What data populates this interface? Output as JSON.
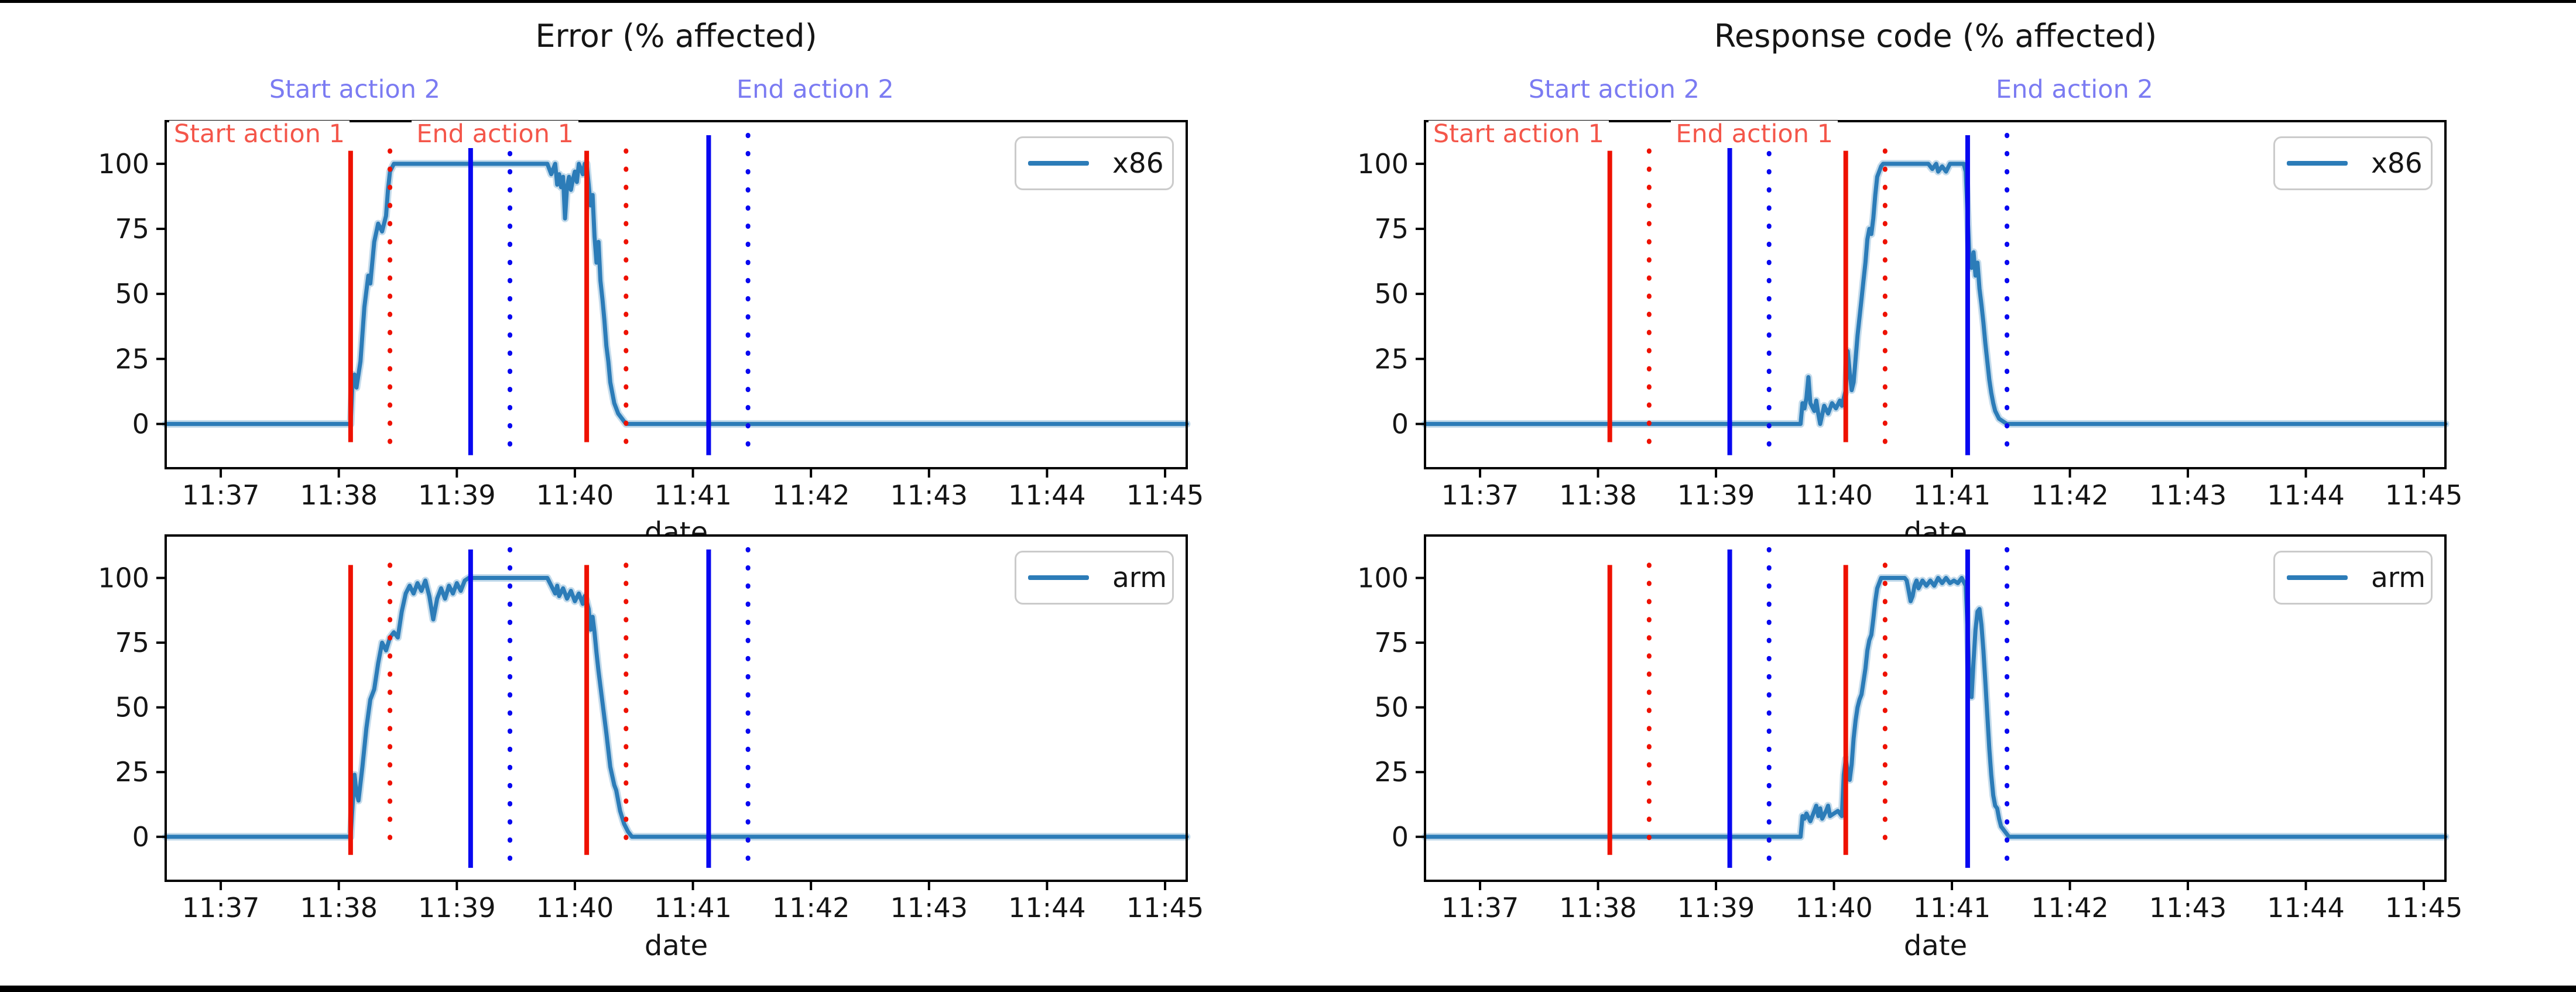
{
  "figure": {
    "background": "#ffffff",
    "border_top_color": "#000000",
    "border_bottom_color": "#000000"
  },
  "colors": {
    "series_line": "#2c7cb8",
    "action_red_line": "#ee1100",
    "action_blue_line": "#0808f0",
    "annotation_red_text": "#f4564a",
    "annotation_blue_text": "#7b7bf2",
    "axis_text": "#151515",
    "legend_border": "#cbcbcb"
  },
  "chart_data": {
    "type": "line",
    "xlabel": "date",
    "time_axis": "seconds_after_11:00",
    "xlim_seconds": [
      2192,
      2711
    ],
    "xtick_seconds": [
      2220,
      2280,
      2340,
      2400,
      2460,
      2520,
      2580,
      2640,
      2700
    ],
    "xtick_labels": [
      "11:37",
      "11:38",
      "11:39",
      "11:40",
      "11:41",
      "11:42",
      "11:43",
      "11:44",
      "11:45"
    ],
    "yticks": [
      0,
      25,
      50,
      75,
      100
    ],
    "ylim": [
      -17,
      116.4
    ],
    "grid": false,
    "legend_position": "upper right",
    "action_lines": [
      {
        "action": "Start action 1",
        "time": "11:38:06",
        "color": "red",
        "style": "solid"
      },
      {
        "action": "Start action 1 (detected)",
        "time": "11:38:26",
        "color": "red",
        "style": "dotted"
      },
      {
        "action": "Start action 2",
        "time": "11:39:07",
        "color": "blue",
        "style": "solid"
      },
      {
        "action": "Start action 2 (detected)",
        "time": "11:39:27",
        "color": "blue",
        "style": "dotted"
      },
      {
        "action": "End action 1",
        "time": "11:40:06",
        "color": "red",
        "style": "solid"
      },
      {
        "action": "End action 1 (detected)",
        "time": "11:40:26",
        "color": "red",
        "style": "dotted"
      },
      {
        "action": "End action 2",
        "time": "11:41:08",
        "color": "blue",
        "style": "solid"
      },
      {
        "action": "End action 2 (detected)",
        "time": "11:41:28",
        "color": "blue",
        "style": "dotted"
      }
    ],
    "line_extent_values": {
      "red": [
        -7,
        105
      ],
      "blue": [
        -12,
        111
      ]
    },
    "annotations": [
      {
        "text": "Start action 1",
        "color": "red"
      },
      {
        "text": "Start action 2",
        "color": "blue"
      },
      {
        "text": "End action 1",
        "color": "red"
      },
      {
        "text": "End action 2",
        "color": "blue"
      }
    ],
    "panels": [
      {
        "id": "top-left",
        "title": "Error (% affected)",
        "legend": "x86",
        "series_name": "x86",
        "metric": "Error (% affected)",
        "show_annotations": true,
        "points": [
          [
            2192,
            0
          ],
          [
            2286,
            0
          ],
          [
            2287,
            16
          ],
          [
            2288,
            19
          ],
          [
            2289,
            14
          ],
          [
            2291,
            24
          ],
          [
            2293,
            45
          ],
          [
            2295,
            57
          ],
          [
            2296,
            54
          ],
          [
            2298,
            70
          ],
          [
            2300,
            77
          ],
          [
            2302,
            74
          ],
          [
            2304,
            80
          ],
          [
            2305,
            90
          ],
          [
            2306,
            97
          ],
          [
            2308,
            100
          ],
          [
            2386,
            100
          ],
          [
            2388,
            96
          ],
          [
            2390,
            100
          ],
          [
            2391,
            92
          ],
          [
            2392,
            96
          ],
          [
            2393,
            91
          ],
          [
            2394,
            95
          ],
          [
            2395,
            79
          ],
          [
            2396,
            91
          ],
          [
            2397,
            95
          ],
          [
            2398,
            90
          ],
          [
            2399,
            94
          ],
          [
            2400,
            97
          ],
          [
            2401,
            93
          ],
          [
            2402,
            100
          ],
          [
            2404,
            96
          ],
          [
            2405,
            100
          ],
          [
            2406,
            100
          ],
          [
            2407,
            92
          ],
          [
            2408,
            84
          ],
          [
            2409,
            88
          ],
          [
            2410,
            72
          ],
          [
            2411,
            62
          ],
          [
            2412,
            70
          ],
          [
            2413,
            55
          ],
          [
            2414,
            48
          ],
          [
            2415,
            40
          ],
          [
            2416,
            30
          ],
          [
            2417,
            24
          ],
          [
            2418,
            16
          ],
          [
            2419,
            12
          ],
          [
            2420,
            8
          ],
          [
            2422,
            4
          ],
          [
            2424,
            2
          ],
          [
            2426,
            0
          ],
          [
            2711,
            0
          ]
        ]
      },
      {
        "id": "top-right",
        "title": "Response code (% affected)",
        "legend": "x86",
        "series_name": "x86",
        "metric": "Response code (% affected)",
        "show_annotations": true,
        "points": [
          [
            2192,
            0
          ],
          [
            2383,
            0
          ],
          [
            2384,
            8
          ],
          [
            2385,
            6
          ],
          [
            2386,
            10
          ],
          [
            2387,
            18
          ],
          [
            2388,
            8
          ],
          [
            2390,
            5
          ],
          [
            2391,
            9
          ],
          [
            2392,
            4
          ],
          [
            2393,
            0
          ],
          [
            2395,
            7
          ],
          [
            2397,
            4
          ],
          [
            2399,
            8
          ],
          [
            2401,
            6
          ],
          [
            2403,
            9
          ],
          [
            2404,
            7
          ],
          [
            2405,
            10
          ],
          [
            2406,
            13
          ],
          [
            2407,
            28
          ],
          [
            2408,
            20
          ],
          [
            2409,
            13
          ],
          [
            2410,
            16
          ],
          [
            2411,
            25
          ],
          [
            2412,
            34
          ],
          [
            2414,
            48
          ],
          [
            2415,
            55
          ],
          [
            2416,
            62
          ],
          [
            2417,
            71
          ],
          [
            2418,
            75
          ],
          [
            2419,
            73
          ],
          [
            2420,
            79
          ],
          [
            2421,
            88
          ],
          [
            2422,
            95
          ],
          [
            2424,
            99
          ],
          [
            2425,
            100
          ],
          [
            2448,
            100
          ],
          [
            2450,
            98
          ],
          [
            2452,
            100
          ],
          [
            2453,
            97
          ],
          [
            2455,
            99
          ],
          [
            2457,
            97
          ],
          [
            2459,
            100
          ],
          [
            2466,
            100
          ],
          [
            2467,
            97
          ],
          [
            2468,
            80
          ],
          [
            2469,
            62
          ],
          [
            2470,
            60
          ],
          [
            2471,
            66
          ],
          [
            2472,
            57
          ],
          [
            2473,
            62
          ],
          [
            2474,
            52
          ],
          [
            2475,
            46
          ],
          [
            2476,
            39
          ],
          [
            2477,
            31
          ],
          [
            2478,
            24
          ],
          [
            2479,
            17
          ],
          [
            2480,
            12
          ],
          [
            2481,
            8
          ],
          [
            2482,
            5
          ],
          [
            2484,
            2
          ],
          [
            2486,
            1
          ],
          [
            2488,
            0
          ],
          [
            2711,
            0
          ]
        ]
      },
      {
        "id": "bottom-left",
        "title": "",
        "legend": "arm",
        "series_name": "arm",
        "metric": "Error (% affected)",
        "show_annotations": false,
        "points": [
          [
            2192,
            0
          ],
          [
            2286,
            0
          ],
          [
            2287,
            12
          ],
          [
            2288,
            24
          ],
          [
            2289,
            17
          ],
          [
            2290,
            14
          ],
          [
            2292,
            27
          ],
          [
            2294,
            42
          ],
          [
            2296,
            53
          ],
          [
            2298,
            57
          ],
          [
            2300,
            67
          ],
          [
            2302,
            75
          ],
          [
            2304,
            72
          ],
          [
            2306,
            77
          ],
          [
            2308,
            79
          ],
          [
            2310,
            77
          ],
          [
            2312,
            87
          ],
          [
            2314,
            94
          ],
          [
            2316,
            97
          ],
          [
            2318,
            94
          ],
          [
            2320,
            98
          ],
          [
            2322,
            95
          ],
          [
            2324,
            99
          ],
          [
            2326,
            93
          ],
          [
            2328,
            84
          ],
          [
            2330,
            92
          ],
          [
            2332,
            96
          ],
          [
            2334,
            92
          ],
          [
            2336,
            97
          ],
          [
            2338,
            94
          ],
          [
            2340,
            98
          ],
          [
            2342,
            95
          ],
          [
            2344,
            99
          ],
          [
            2346,
            100
          ],
          [
            2386,
            100
          ],
          [
            2388,
            97
          ],
          [
            2390,
            94
          ],
          [
            2391,
            97
          ],
          [
            2392,
            93
          ],
          [
            2394,
            96
          ],
          [
            2396,
            92
          ],
          [
            2398,
            95
          ],
          [
            2400,
            91
          ],
          [
            2402,
            94
          ],
          [
            2404,
            90
          ],
          [
            2405,
            93
          ],
          [
            2406,
            91
          ],
          [
            2407,
            88
          ],
          [
            2408,
            80
          ],
          [
            2409,
            85
          ],
          [
            2410,
            79
          ],
          [
            2411,
            71
          ],
          [
            2412,
            64
          ],
          [
            2414,
            52
          ],
          [
            2416,
            40
          ],
          [
            2418,
            27
          ],
          [
            2420,
            20
          ],
          [
            2421,
            18
          ],
          [
            2423,
            10
          ],
          [
            2425,
            5
          ],
          [
            2427,
            2
          ],
          [
            2429,
            0
          ],
          [
            2711,
            0
          ]
        ]
      },
      {
        "id": "bottom-right",
        "title": "",
        "legend": "arm",
        "series_name": "arm",
        "metric": "Response code (% affected)",
        "show_annotations": false,
        "points": [
          [
            2192,
            0
          ],
          [
            2383,
            0
          ],
          [
            2384,
            8
          ],
          [
            2385,
            7
          ],
          [
            2386,
            9
          ],
          [
            2388,
            6
          ],
          [
            2390,
            10
          ],
          [
            2391,
            12
          ],
          [
            2392,
            8
          ],
          [
            2393,
            11
          ],
          [
            2394,
            7
          ],
          [
            2396,
            10
          ],
          [
            2397,
            12
          ],
          [
            2398,
            8
          ],
          [
            2400,
            9
          ],
          [
            2402,
            10
          ],
          [
            2404,
            8
          ],
          [
            2405,
            24
          ],
          [
            2406,
            30
          ],
          [
            2407,
            25
          ],
          [
            2408,
            22
          ],
          [
            2409,
            28
          ],
          [
            2410,
            38
          ],
          [
            2411,
            45
          ],
          [
            2412,
            50
          ],
          [
            2413,
            53
          ],
          [
            2414,
            55
          ],
          [
            2416,
            65
          ],
          [
            2417,
            72
          ],
          [
            2418,
            76
          ],
          [
            2419,
            78
          ],
          [
            2420,
            84
          ],
          [
            2421,
            91
          ],
          [
            2422,
            96
          ],
          [
            2424,
            100
          ],
          [
            2436,
            100
          ],
          [
            2437,
            99
          ],
          [
            2438,
            95
          ],
          [
            2439,
            91
          ],
          [
            2440,
            93
          ],
          [
            2441,
            97
          ],
          [
            2442,
            99
          ],
          [
            2443,
            96
          ],
          [
            2445,
            99
          ],
          [
            2447,
            97
          ],
          [
            2449,
            99
          ],
          [
            2451,
            97
          ],
          [
            2453,
            100
          ],
          [
            2455,
            98
          ],
          [
            2457,
            100
          ],
          [
            2459,
            98
          ],
          [
            2461,
            99
          ],
          [
            2463,
            98
          ],
          [
            2465,
            100
          ],
          [
            2467,
            97
          ],
          [
            2468,
            80
          ],
          [
            2469,
            58
          ],
          [
            2470,
            54
          ],
          [
            2471,
            68
          ],
          [
            2472,
            80
          ],
          [
            2473,
            87
          ],
          [
            2474,
            88
          ],
          [
            2475,
            82
          ],
          [
            2476,
            72
          ],
          [
            2477,
            60
          ],
          [
            2478,
            47
          ],
          [
            2479,
            34
          ],
          [
            2480,
            24
          ],
          [
            2481,
            16
          ],
          [
            2482,
            12
          ],
          [
            2483,
            11
          ],
          [
            2484,
            7
          ],
          [
            2485,
            4
          ],
          [
            2487,
            2
          ],
          [
            2489,
            0
          ],
          [
            2711,
            0
          ]
        ]
      }
    ]
  }
}
